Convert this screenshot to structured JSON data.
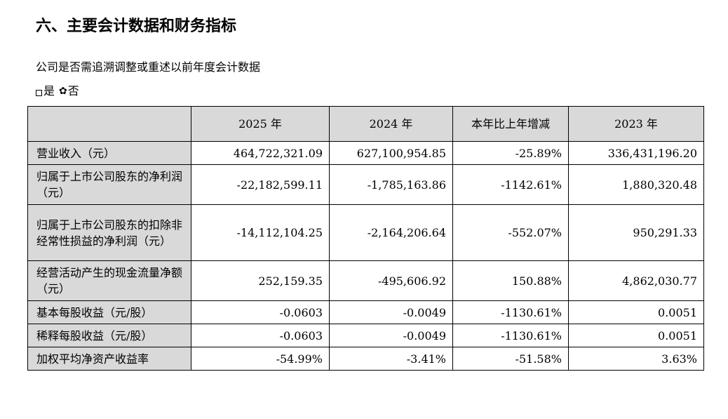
{
  "section": {
    "title": "六、主要会计数据和财务指标",
    "question": "公司是否需追溯调整或重述以前年度会计数据",
    "option_yes": "是",
    "option_no": "否"
  },
  "table": {
    "headers": [
      "",
      "2025 年",
      "2024 年",
      "本年比上年增减",
      "2023 年"
    ],
    "rows": [
      {
        "label": "营业收入（元）",
        "values": [
          "464,722,321.09",
          "627,100,954.85",
          "-25.89%",
          "336,431,196.20"
        ]
      },
      {
        "label": "归属于上市公司股东的净利润（元）",
        "values": [
          "-22,182,599.11",
          "-1,785,163.86",
          "-1142.61%",
          "1,880,320.48"
        ]
      },
      {
        "label": "归属于上市公司股东的扣除非经常性损益的净利润（元）",
        "values": [
          "-14,112,104.25",
          "-2,164,206.64",
          "-552.07%",
          "950,291.33"
        ]
      },
      {
        "label": "经营活动产生的现金流量净额（元）",
        "values": [
          "252,159.35",
          "-495,606.92",
          "150.88%",
          "4,862,030.77"
        ]
      },
      {
        "label": "基本每股收益（元/股）",
        "values": [
          "-0.0603",
          "-0.0049",
          "-1130.61%",
          "0.0051"
        ]
      },
      {
        "label": "稀释每股收益（元/股）",
        "values": [
          "-0.0603",
          "-0.0049",
          "-1130.61%",
          "0.0051"
        ]
      },
      {
        "label": "加权平均净资产收益率",
        "values": [
          "-54.99%",
          "-3.41%",
          "-51.58%",
          "3.63%"
        ]
      }
    ]
  }
}
